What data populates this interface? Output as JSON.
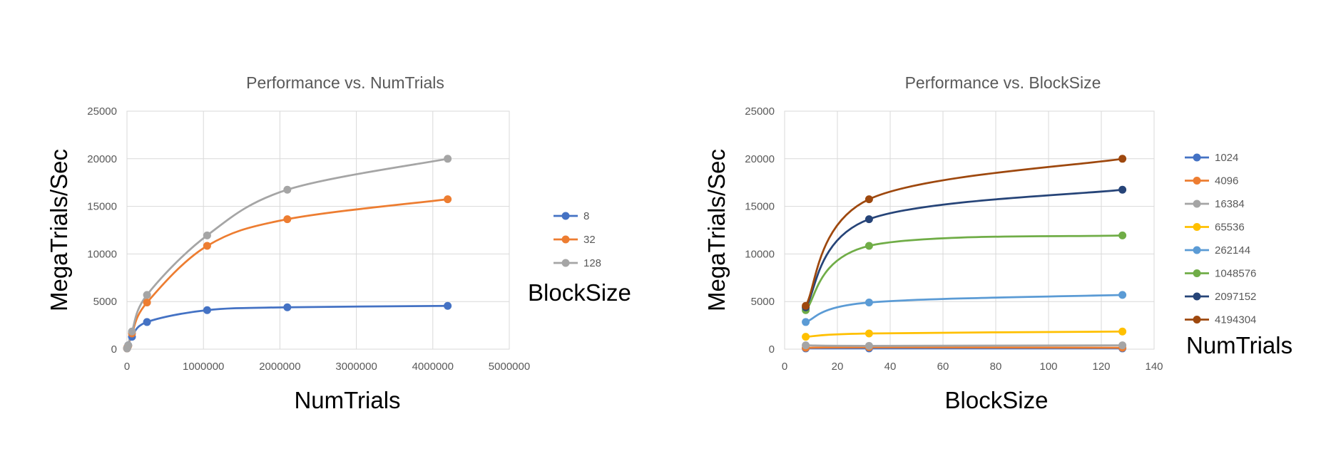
{
  "chart_data": [
    {
      "type": "scatter",
      "title": "Performance vs. NumTrials",
      "xlabel": "NumTrials",
      "ylabel": "MegaTrials/Sec",
      "xlim": [
        0,
        5000000
      ],
      "ylim": [
        0,
        25000
      ],
      "xticks": [
        0,
        1000000,
        2000000,
        3000000,
        4000000,
        5000000
      ],
      "yticks": [
        0,
        5000,
        10000,
        15000,
        20000,
        25000
      ],
      "grid": true,
      "legend_title": "BlockSize",
      "legend_position": "right",
      "smooth": true,
      "series": [
        {
          "name": "8",
          "color": "#4472C4",
          "x": [
            1024,
            4096,
            16384,
            65536,
            262144,
            1048576,
            2097152,
            4194304
          ],
          "y": [
            80,
            150,
            400,
            1300,
            2850,
            4100,
            4400,
            4550
          ]
        },
        {
          "name": "32",
          "color": "#ED7D31",
          "x": [
            1024,
            4096,
            16384,
            65536,
            262144,
            1048576,
            2097152,
            4194304
          ],
          "y": [
            80,
            200,
            350,
            1650,
            4900,
            10850,
            13650,
            15750
          ]
        },
        {
          "name": "128",
          "color": "#A5A5A5",
          "x": [
            1024,
            4096,
            16384,
            65536,
            262144,
            1048576,
            2097152,
            4194304
          ],
          "y": [
            80,
            150,
            400,
            1850,
            5700,
            11950,
            16750,
            20000
          ]
        }
      ]
    },
    {
      "type": "scatter",
      "title": "Performance vs. BlockSize",
      "xlabel": "BlockSize",
      "ylabel": "MegaTrials/Sec",
      "xlim": [
        0,
        140
      ],
      "ylim": [
        0,
        25000
      ],
      "xticks": [
        0,
        20,
        40,
        60,
        80,
        100,
        120,
        140
      ],
      "yticks": [
        0,
        5000,
        10000,
        15000,
        20000,
        25000
      ],
      "grid": true,
      "legend_title": "NumTrials",
      "legend_position": "right",
      "smooth": true,
      "series": [
        {
          "name": "1024",
          "color": "#4472C4",
          "x": [
            8,
            32,
            128
          ],
          "y": [
            80,
            80,
            80
          ]
        },
        {
          "name": "4096",
          "color": "#ED7D31",
          "x": [
            8,
            32,
            128
          ],
          "y": [
            150,
            200,
            150
          ]
        },
        {
          "name": "16384",
          "color": "#A5A5A5",
          "x": [
            8,
            32,
            128
          ],
          "y": [
            400,
            350,
            400
          ]
        },
        {
          "name": "65536",
          "color": "#FFC000",
          "x": [
            8,
            32,
            128
          ],
          "y": [
            1300,
            1650,
            1850
          ]
        },
        {
          "name": "262144",
          "color": "#5B9BD5",
          "x": [
            8,
            32,
            128
          ],
          "y": [
            2850,
            4900,
            5700
          ]
        },
        {
          "name": "1048576",
          "color": "#70AD47",
          "x": [
            8,
            32,
            128
          ],
          "y": [
            4100,
            10850,
            11950
          ]
        },
        {
          "name": "2097152",
          "color": "#264478",
          "x": [
            8,
            32,
            128
          ],
          "y": [
            4400,
            13650,
            16750
          ]
        },
        {
          "name": "4194304",
          "color": "#9E480E",
          "x": [
            8,
            32,
            128
          ],
          "y": [
            4550,
            15750,
            20000
          ]
        }
      ]
    }
  ]
}
